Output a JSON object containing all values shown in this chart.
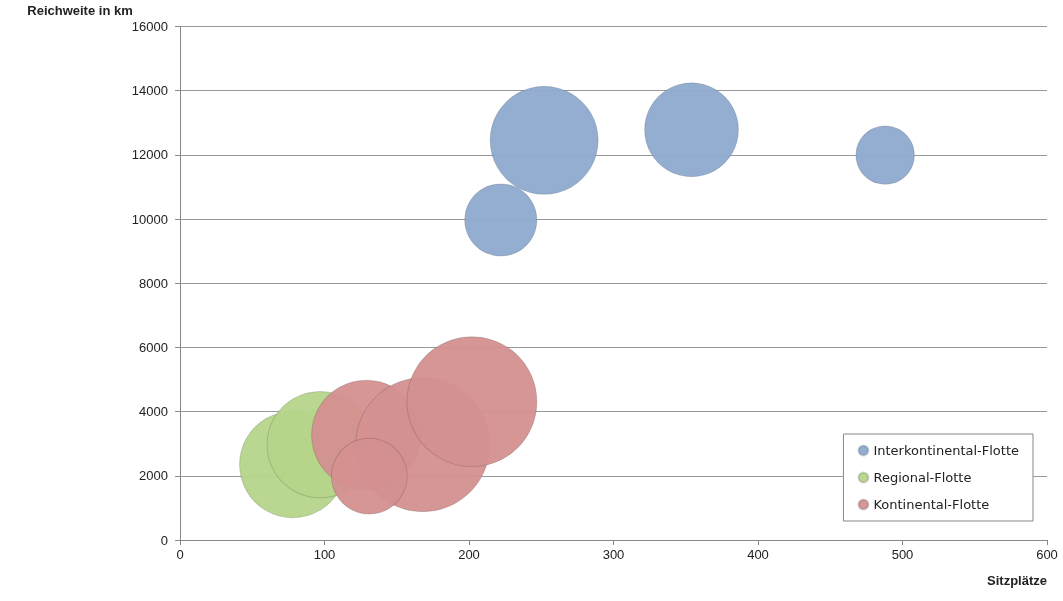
{
  "chart_data": {
    "type": "bubble",
    "xlabel": "Sitzplätze",
    "ylabel": "Reichweite in km",
    "xlim": [
      0,
      600
    ],
    "xticks": [
      0,
      100,
      200,
      300,
      400,
      500,
      600
    ],
    "ylim": [
      0,
      16000
    ],
    "yticks": [
      0,
      2000,
      4000,
      6000,
      8000,
      10000,
      12000,
      14000,
      16000
    ],
    "grid": "y",
    "legend": "bottom right",
    "series": [
      {
        "name": "Interkontinental-Flotte",
        "color": "#8eaad0",
        "x": [
          252,
          354,
          488,
          222
        ],
        "values": [
          12450,
          12780,
          11990,
          9970
        ],
        "sizes": [
          0.65,
          0.49,
          0.19,
          0.29
        ]
      },
      {
        "name": "Regional-Flotte",
        "color": "#b5d58a",
        "x": [
          78,
          97
        ],
        "values": [
          2350,
          2970
        ],
        "sizes": [
          0.63,
          0.63
        ]
      },
      {
        "name": "Kontinental-Flotte",
        "color": "#d49090",
        "x": [
          129,
          168,
          202,
          131
        ],
        "values": [
          3270,
          2970,
          4310,
          1990
        ],
        "sizes": [
          0.67,
          1,
          0.94,
          0.32
        ]
      }
    ]
  }
}
